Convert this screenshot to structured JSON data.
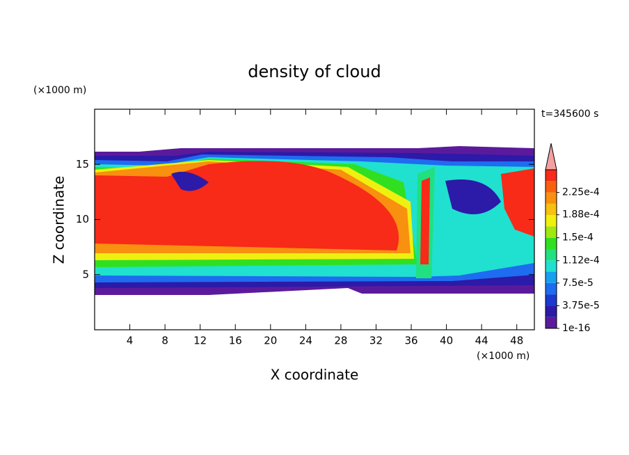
{
  "chart_data": {
    "type": "contour",
    "title": "density of cloud",
    "xlabel": "X coordinate",
    "ylabel": "Z coordinate",
    "xunit": "(×1000 m)",
    "yunit": "(×1000 m)",
    "time_label": "t=345600 s",
    "xlim": [
      0,
      50
    ],
    "xticks": [
      4,
      8,
      12,
      16,
      20,
      24,
      28,
      32,
      36,
      40,
      44,
      48
    ],
    "ylim": [
      0,
      20
    ],
    "yticks": [
      5,
      10,
      15
    ],
    "colorbar": {
      "lim": [
        1e-16,
        0.0002625
      ],
      "ticks": [
        {
          "value": 1e-16,
          "label": "1e-16"
        },
        {
          "value": 3.75e-05,
          "label": "3.75e-5"
        },
        {
          "value": 7.5e-05,
          "label": "7.5e-5"
        },
        {
          "value": 0.000112,
          "label": "1.12e-4"
        },
        {
          "value": 0.00015,
          "label": "1.5e-4"
        },
        {
          "value": 0.000188,
          "label": "1.88e-4"
        },
        {
          "value": 0.000225,
          "label": "2.25e-4"
        }
      ],
      "colors": [
        "#5b1a9c",
        "#2c1aa8",
        "#1a3ad0",
        "#1e6cf0",
        "#18a0f0",
        "#20e0d0",
        "#20e080",
        "#30e020",
        "#a0e810",
        "#f0f010",
        "#f8c010",
        "#f89010",
        "#f86010",
        "#f82a18"
      ],
      "over_color": "#f4a0a0"
    }
  }
}
